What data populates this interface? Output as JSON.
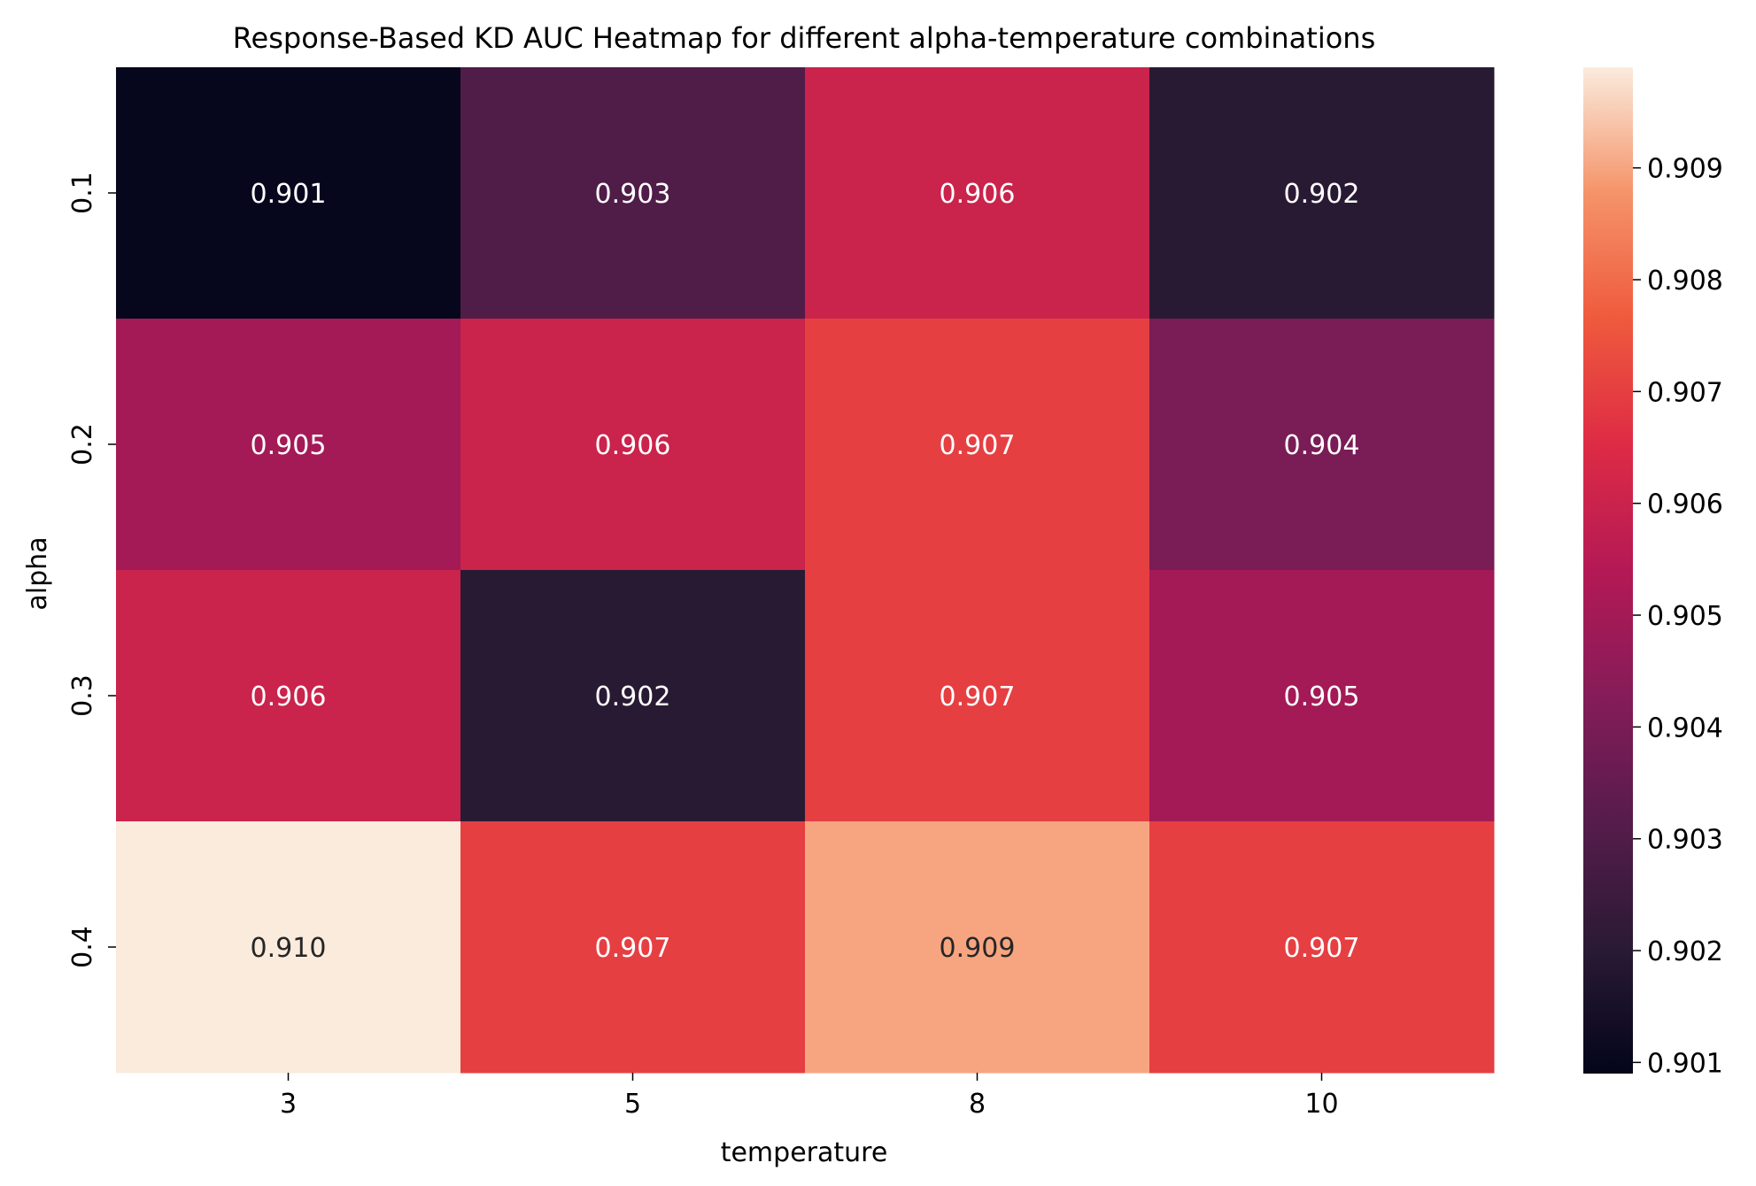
{
  "chart_data": {
    "type": "heatmap",
    "title": "Response-Based KD AUC Heatmap for different alpha-temperature combinations",
    "xlabel": "temperature",
    "ylabel": "alpha",
    "x_categories": [
      "3",
      "5",
      "8",
      "10"
    ],
    "y_categories": [
      "0.1",
      "0.2",
      "0.3",
      "0.4"
    ],
    "values": [
      [
        0.901,
        0.903,
        0.906,
        0.902
      ],
      [
        0.905,
        0.906,
        0.907,
        0.904
      ],
      [
        0.906,
        0.902,
        0.907,
        0.905
      ],
      [
        0.91,
        0.907,
        0.909,
        0.907
      ]
    ],
    "cell_labels": [
      [
        "0.901",
        "0.903",
        "0.906",
        "0.902"
      ],
      [
        "0.905",
        "0.906",
        "0.907",
        "0.904"
      ],
      [
        "0.906",
        "0.902",
        "0.907",
        "0.905"
      ],
      [
        "0.910",
        "0.907",
        "0.909",
        "0.907"
      ]
    ],
    "colormap": "rocket",
    "vmin": 0.9009,
    "vmax": 0.9099,
    "colorbar": {
      "ticks": [
        0.901,
        0.902,
        0.903,
        0.904,
        0.905,
        0.906,
        0.907,
        0.908,
        0.909
      ],
      "tick_labels": [
        "0.901",
        "0.902",
        "0.903",
        "0.904",
        "0.905",
        "0.906",
        "0.907",
        "0.908",
        "0.909"
      ]
    },
    "legend": "colorbar-right",
    "grid": false
  }
}
